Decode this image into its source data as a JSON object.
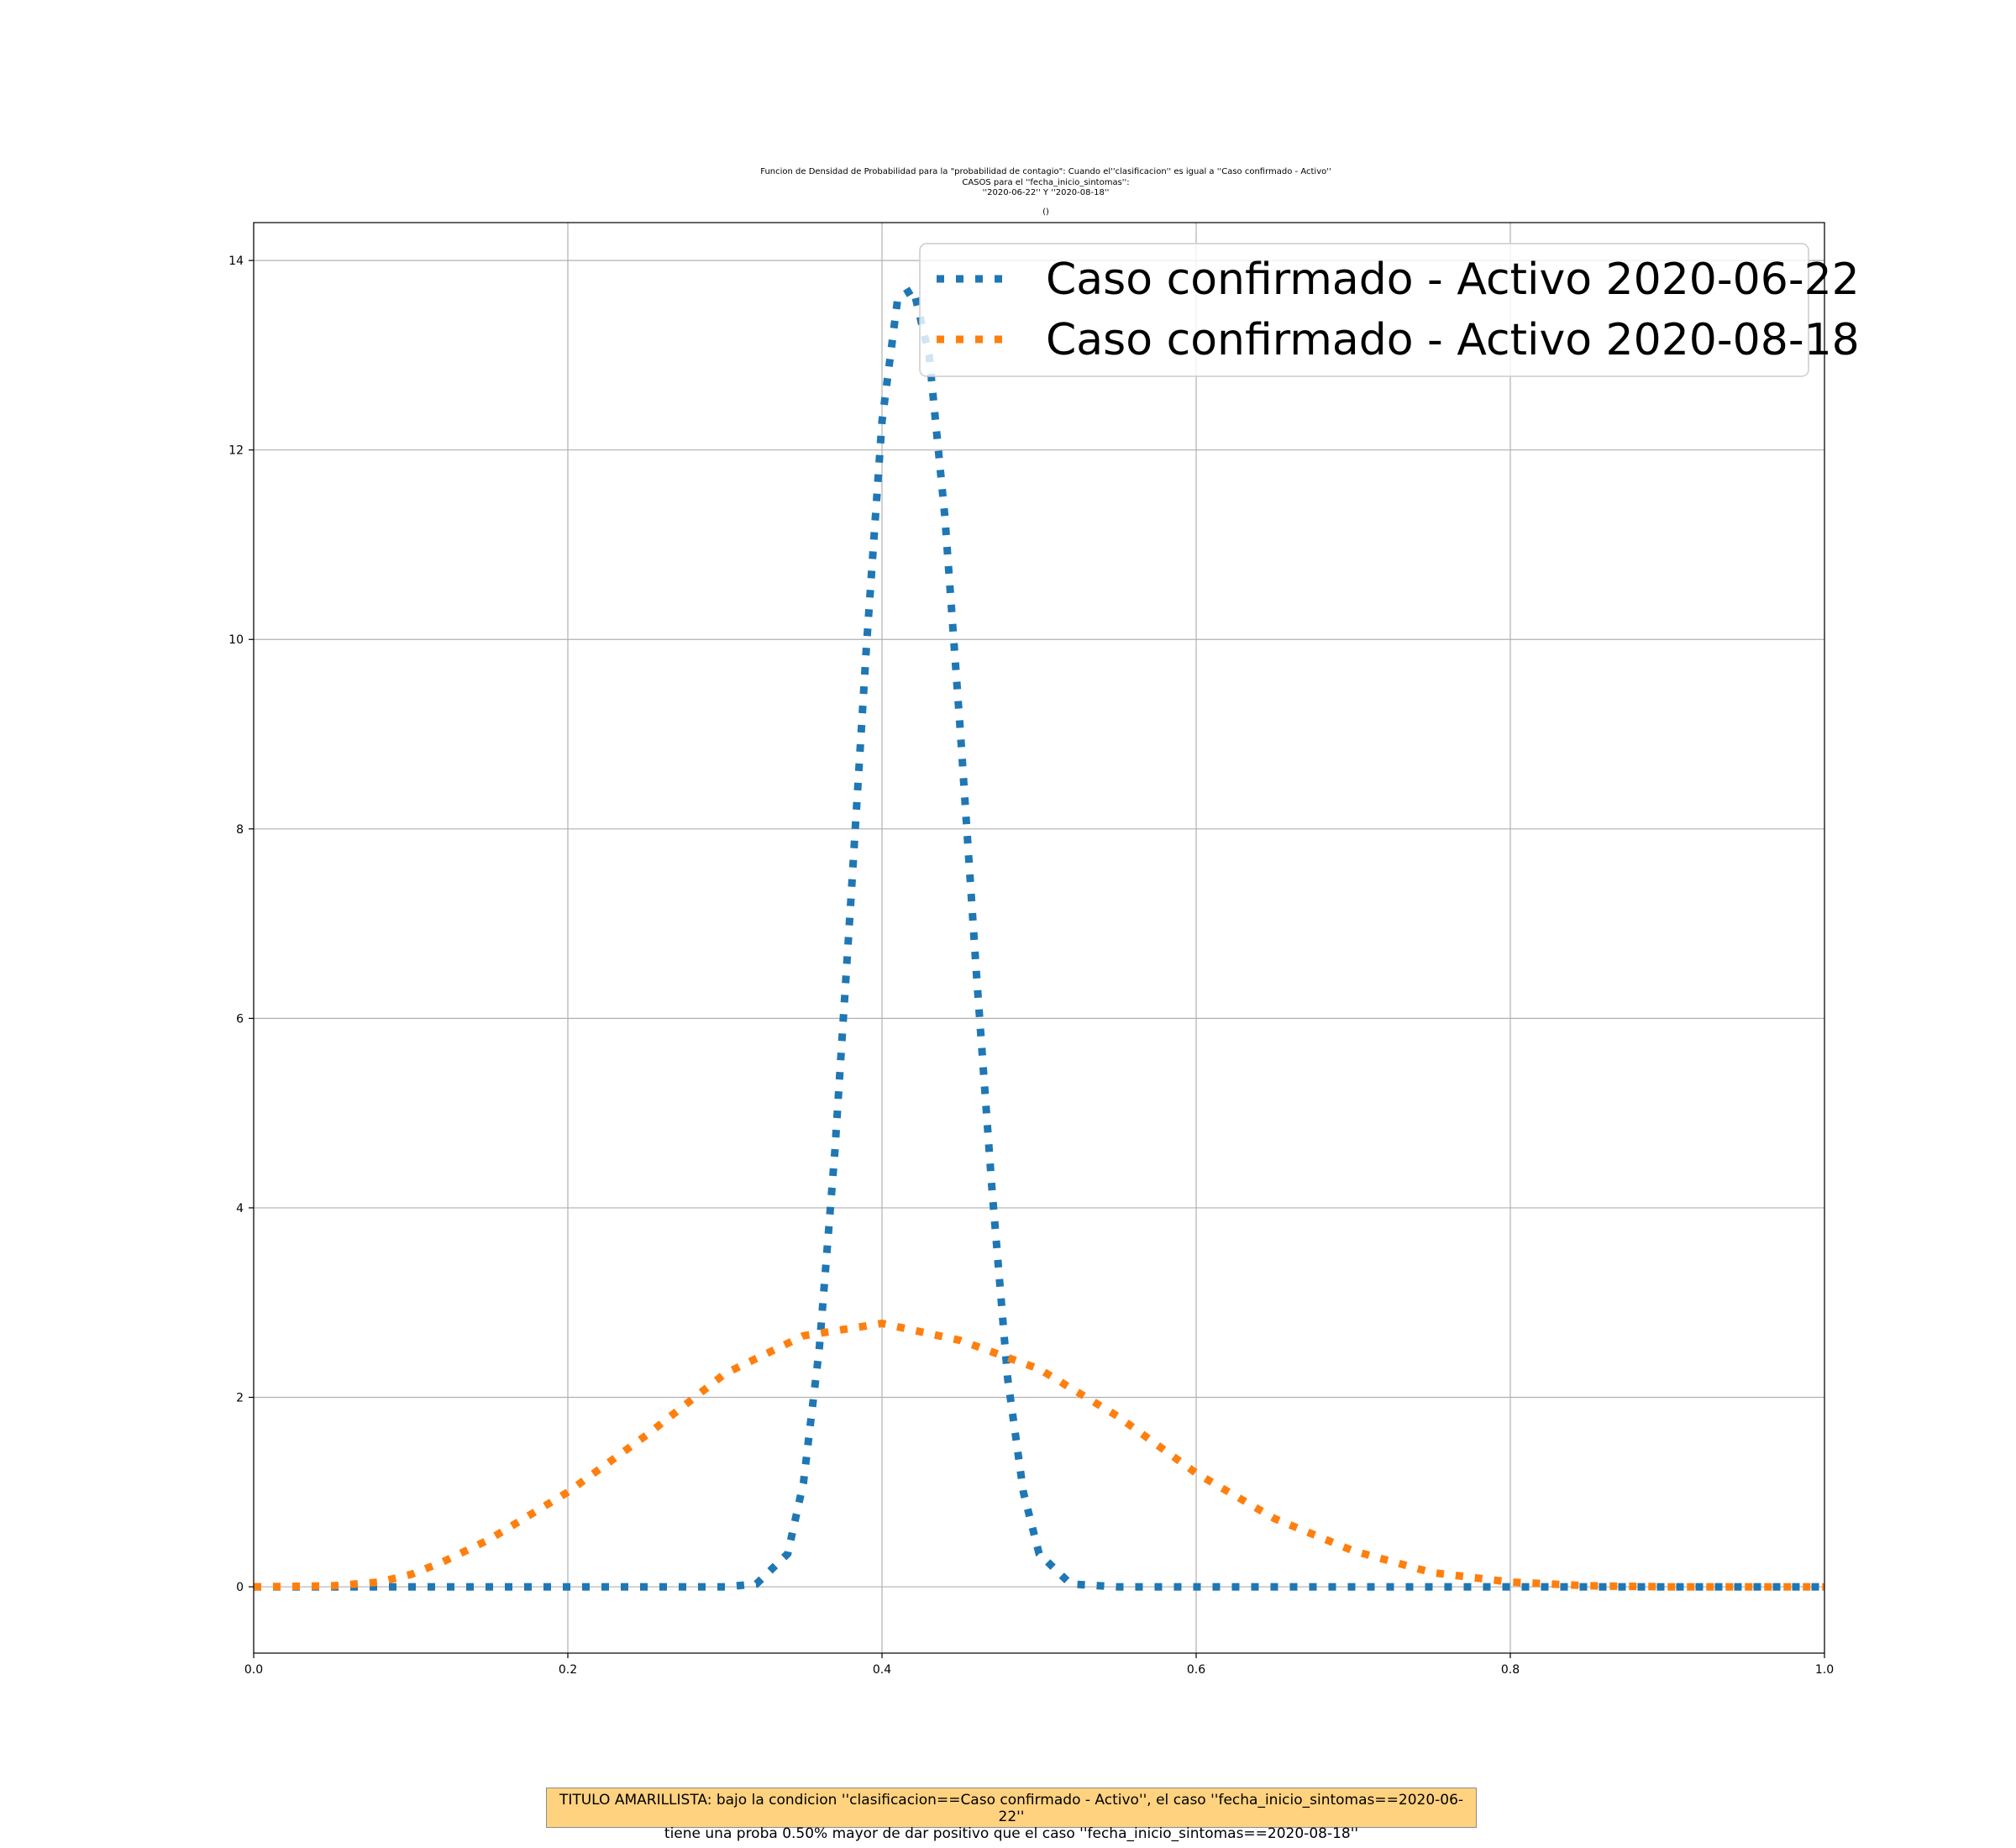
{
  "chart_data": {
    "type": "line",
    "title_lines": [
      "Funcion de Densidad de Probabilidad para la \"probabilidad de contagio\": Cuando el''clasificacion'' es igual a ''Caso confirmado - Activo''",
      "CASOS para  el ''fecha_inicio_sintomas'':",
      "''2020-06-22'' Y ''2020-08-18''"
    ],
    "subtitle": "()",
    "xlabel": "",
    "ylabel": "",
    "xlim": [
      0.0,
      1.0
    ],
    "ylim": [
      -0.7,
      14.4
    ],
    "x_ticks": [
      "0.0",
      "0.2",
      "0.4",
      "0.6",
      "0.8",
      "1.0"
    ],
    "y_ticks": [
      "0",
      "2",
      "4",
      "6",
      "8",
      "10",
      "12",
      "14"
    ],
    "grid": true,
    "legend_position": "upper-right",
    "series": [
      {
        "name": "Caso confirmado - Activo 2020-06-22",
        "color": "#1f77b4",
        "linestyle": "dotted",
        "x": [
          0.0,
          0.1,
          0.2,
          0.3,
          0.32,
          0.34,
          0.35,
          0.36,
          0.37,
          0.38,
          0.39,
          0.4,
          0.41,
          0.42,
          0.43,
          0.44,
          0.45,
          0.46,
          0.47,
          0.48,
          0.49,
          0.5,
          0.52,
          0.55,
          0.6,
          0.8,
          1.0
        ],
        "y": [
          0,
          0,
          0,
          0,
          0.03,
          0.35,
          1.1,
          2.5,
          4.6,
          7.2,
          9.9,
          12.3,
          13.6,
          13.7,
          13.0,
          11.3,
          9.0,
          6.5,
          4.2,
          2.2,
          1.0,
          0.35,
          0.03,
          0,
          0,
          0,
          0
        ]
      },
      {
        "name": "Caso confirmado - Activo 2020-08-18",
        "color": "#ff7f0e",
        "linestyle": "dotted",
        "x": [
          0.0,
          0.05,
          0.08,
          0.1,
          0.12,
          0.15,
          0.2,
          0.25,
          0.3,
          0.35,
          0.4,
          0.45,
          0.5,
          0.55,
          0.6,
          0.65,
          0.7,
          0.75,
          0.8,
          0.85,
          0.9,
          1.0
        ],
        "y": [
          0,
          0.01,
          0.05,
          0.13,
          0.26,
          0.5,
          1.0,
          1.6,
          2.25,
          2.65,
          2.78,
          2.6,
          2.3,
          1.8,
          1.2,
          0.72,
          0.38,
          0.15,
          0.05,
          0.01,
          0,
          0
        ]
      }
    ]
  },
  "annotation": {
    "line1": "TITULO AMARILLISTA: bajo la condicion ''clasificacion==Caso confirmado - Activo'', el caso ''fecha_inicio_sintomas==2020-06-22''",
    "line2": "tiene una proba 0.50% mayor de dar positivo que el caso ''fecha_inicio_sintomas==2020-08-18''",
    "background": "#ffd280"
  }
}
